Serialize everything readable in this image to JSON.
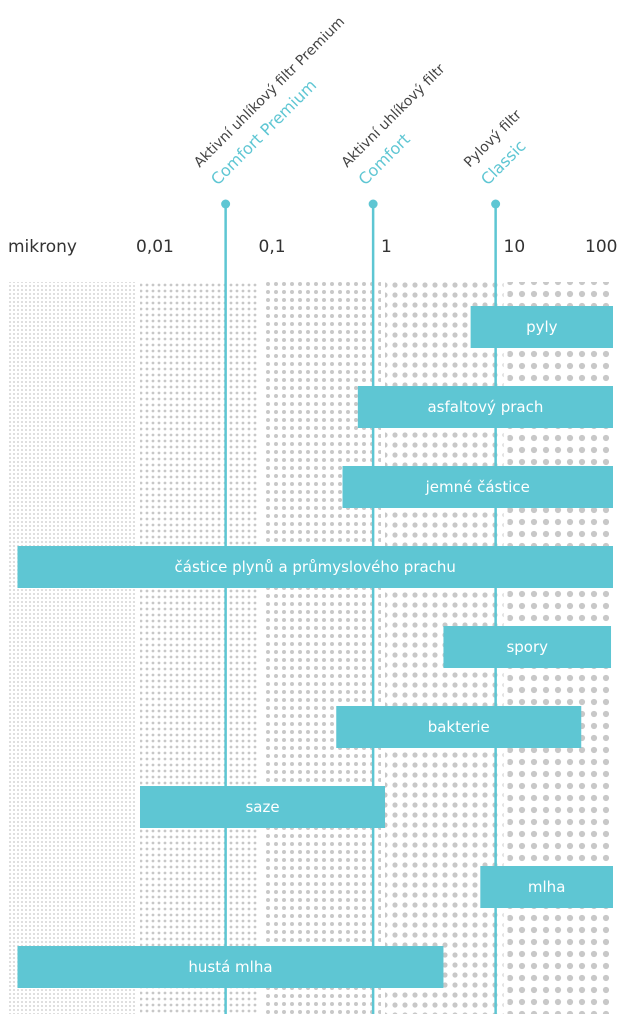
{
  "chart_data": {
    "type": "bar",
    "orientation": "horizontal-range",
    "x_scale": "log",
    "x_unit_label": "mikrony",
    "x_ticks": [
      "0,01",
      "0,1",
      "1",
      "10",
      "100"
    ],
    "x_tick_values": [
      0.01,
      0.1,
      1,
      10,
      100
    ],
    "xlim": [
      0.001,
      100
    ],
    "bar_color": "#5ec6d3",
    "line_color": "#5ec6d3",
    "filters": [
      {
        "line1": "Aktivní uhlíkový filtr Premium",
        "line2": "Comfort Premium",
        "at": 0.05
      },
      {
        "line1": "Aktivní uhlíkový filtr",
        "line2": "Comfort",
        "at": 0.8
      },
      {
        "line1": "Pylový filtr",
        "line2": "Classic",
        "at": 8
      }
    ],
    "bars": [
      {
        "label": "pyly",
        "from": 5,
        "to": 150
      },
      {
        "label": "asfaltový prach",
        "from": 0.6,
        "to": 100
      },
      {
        "label": "jemné částice",
        "from": 0.45,
        "to": 100
      },
      {
        "label": "částice plynů a průmyslového prachu",
        "from": 0.001,
        "to": 150
      },
      {
        "label": "spory",
        "from": 3,
        "to": 70
      },
      {
        "label": "bakterie",
        "from": 0.4,
        "to": 40
      },
      {
        "label": "saze",
        "from": 0.01,
        "to": 1
      },
      {
        "label": "mlha",
        "from": 6,
        "to": 100
      },
      {
        "label": "hustá mlha",
        "from": 0.001,
        "to": 3
      }
    ]
  }
}
